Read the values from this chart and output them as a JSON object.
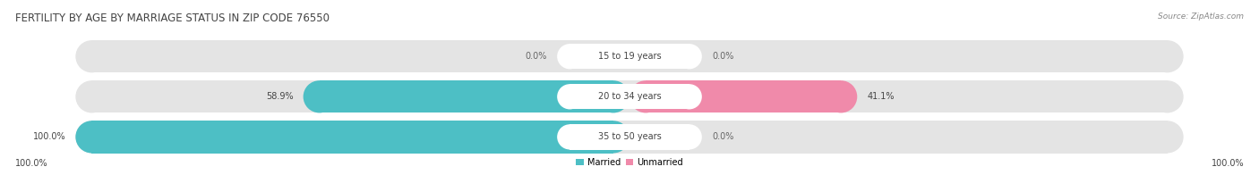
{
  "title": "FERTILITY BY AGE BY MARRIAGE STATUS IN ZIP CODE 76550",
  "source": "Source: ZipAtlas.com",
  "categories": [
    "15 to 19 years",
    "20 to 34 years",
    "35 to 50 years"
  ],
  "married_values": [
    0.0,
    58.9,
    100.0
  ],
  "unmarried_values": [
    0.0,
    41.1,
    0.0
  ],
  "married_color": "#4dbfc5",
  "unmarried_color": "#f08aaa",
  "bg_bar_color": "#e4e4e4",
  "label_bg_color": "#ffffff",
  "title_fontsize": 8.5,
  "source_fontsize": 6.5,
  "label_fontsize": 7.0,
  "category_fontsize": 7.0,
  "bottom_left_label": "100.0%",
  "bottom_right_label": "100.0%",
  "figsize": [
    14.06,
    1.96
  ],
  "dpi": 100
}
